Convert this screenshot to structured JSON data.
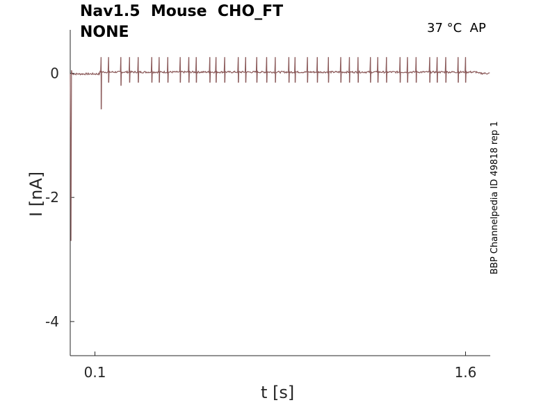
{
  "chart_data": {
    "type": "line",
    "title_line1": "Nav1.5  Mouse  CHO_FT",
    "title_line2": "NONE",
    "condition_label": "37 °C  AP",
    "side_label": "BBP Channelpedia ID 49818 rep 1",
    "xlabel": "t [s]",
    "ylabel": "I [nA]",
    "x_ticks": [
      0.1,
      1.6
    ],
    "x_tick_labels": [
      "0.1",
      "1.6"
    ],
    "y_ticks": [
      0,
      -2,
      -4
    ],
    "y_tick_labels": [
      "0",
      "-2",
      "-4"
    ],
    "xlim": [
      0.0,
      1.7
    ],
    "ylim": [
      -4.55,
      0.7
    ],
    "grid": false,
    "legend": "none",
    "line_color": "#8b5a5a",
    "series": [
      {
        "baseline_early": -0.01,
        "baseline_mid": 0.02,
        "baseline_late": 0.0,
        "initial_transient": {
          "t": 0.003,
          "min": -2.7
        },
        "spikes": [
          {
            "t": 0.125,
            "up": 0.24,
            "down": -0.58
          },
          {
            "t": 0.155,
            "up": 0.24,
            "down": -0.15
          },
          {
            "t": 0.205,
            "up": 0.24,
            "down": -0.2
          },
          {
            "t": 0.24,
            "up": 0.24,
            "down": -0.15
          },
          {
            "t": 0.275,
            "up": 0.24,
            "down": -0.15
          },
          {
            "t": 0.33,
            "up": 0.24,
            "down": -0.15
          },
          {
            "t": 0.36,
            "up": 0.24,
            "down": -0.15
          },
          {
            "t": 0.395,
            "up": 0.24,
            "down": -0.15
          },
          {
            "t": 0.445,
            "up": 0.24,
            "down": -0.15
          },
          {
            "t": 0.48,
            "up": 0.24,
            "down": -0.15
          },
          {
            "t": 0.51,
            "up": 0.24,
            "down": -0.15
          },
          {
            "t": 0.565,
            "up": 0.24,
            "down": -0.15
          },
          {
            "t": 0.59,
            "up": 0.24,
            "down": -0.15
          },
          {
            "t": 0.625,
            "up": 0.24,
            "down": -0.15
          },
          {
            "t": 0.68,
            "up": 0.24,
            "down": -0.15
          },
          {
            "t": 0.71,
            "up": 0.24,
            "down": -0.15
          },
          {
            "t": 0.755,
            "up": 0.24,
            "down": -0.15
          },
          {
            "t": 0.795,
            "up": 0.24,
            "down": -0.15
          },
          {
            "t": 0.83,
            "up": 0.24,
            "down": -0.15
          },
          {
            "t": 0.885,
            "up": 0.24,
            "down": -0.15
          },
          {
            "t": 0.91,
            "up": 0.24,
            "down": -0.15
          },
          {
            "t": 0.96,
            "up": 0.24,
            "down": -0.15
          },
          {
            "t": 1.0,
            "up": 0.24,
            "down": -0.15
          },
          {
            "t": 1.045,
            "up": 0.24,
            "down": -0.15
          },
          {
            "t": 1.095,
            "up": 0.24,
            "down": -0.15
          },
          {
            "t": 1.13,
            "up": 0.24,
            "down": -0.15
          },
          {
            "t": 1.165,
            "up": 0.24,
            "down": -0.15
          },
          {
            "t": 1.215,
            "up": 0.24,
            "down": -0.15
          },
          {
            "t": 1.245,
            "up": 0.24,
            "down": -0.15
          },
          {
            "t": 1.28,
            "up": 0.24,
            "down": -0.15
          },
          {
            "t": 1.335,
            "up": 0.24,
            "down": -0.15
          },
          {
            "t": 1.365,
            "up": 0.24,
            "down": -0.15
          },
          {
            "t": 1.4,
            "up": 0.24,
            "down": -0.15
          },
          {
            "t": 1.455,
            "up": 0.24,
            "down": -0.15
          },
          {
            "t": 1.485,
            "up": 0.24,
            "down": -0.15
          },
          {
            "t": 1.52,
            "up": 0.24,
            "down": -0.15
          },
          {
            "t": 1.57,
            "up": 0.24,
            "down": -0.15
          },
          {
            "t": 1.6,
            "up": 0.24,
            "down": -0.15
          }
        ]
      }
    ]
  }
}
